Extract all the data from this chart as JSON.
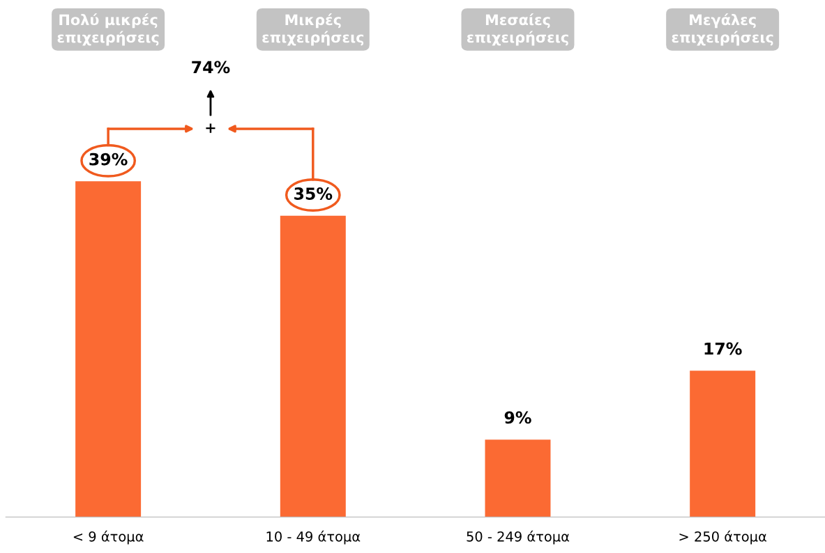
{
  "chart_data": {
    "type": "bar",
    "categories": [
      "< 9 άτομα",
      "10 - 49 άτομα",
      "50 - 249 άτομα",
      "> 250 άτομα"
    ],
    "values": [
      39,
      35,
      9,
      17
    ],
    "value_labels": [
      "39%",
      "35%",
      "9%",
      "17%"
    ],
    "color": "#fb6a33",
    "tick_labels": "x",
    "annotations": [
      "Πολύ μικρές\nεπιχειρήσεις",
      "Μικρές\nεπιχειρήσεις",
      "Μεσαίες\nεπιχειρήσεις",
      "Μεγάλες\nεπιχειρήσεις",
      "+",
      "74%"
    ]
  }
}
